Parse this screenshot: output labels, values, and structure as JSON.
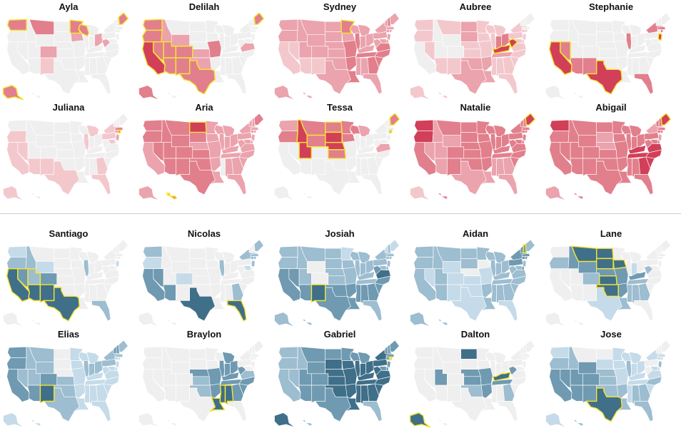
{
  "colors": {
    "none": "#efefef",
    "highlight_stroke": "#f7e534",
    "girls": [
      "#f3c8cd",
      "#eba3ad",
      "#e27f8c",
      "#d23f58"
    ],
    "boys": [
      "#c5dbe9",
      "#9dbdd0",
      "#6f9ab1",
      "#3f6f89"
    ]
  },
  "girls": [
    {
      "name": "Ayla",
      "base": 0,
      "states": {
        "WA": 3,
        "MT": 3,
        "MN": 3,
        "WI": 3,
        "ME": 3,
        "AK": 3,
        "IA": 2,
        "CO": 2,
        "NM": 1,
        "OH": 2,
        "WV": 2
      },
      "highlight": [
        "WA",
        "MN",
        "WI",
        "ME",
        "AK"
      ]
    },
    {
      "name": "Delilah",
      "base": 0,
      "states": {
        "WA": 3,
        "OR": 3,
        "CA": 4,
        "NV": 3,
        "ID": 2,
        "UT": 3,
        "AZ": 3,
        "WY": 2,
        "CO": 3,
        "NM": 3,
        "TX": 3,
        "OK": 2,
        "KS": 2,
        "ME": 3,
        "MO": 3,
        "AK": 3,
        "VA": 2
      },
      "highlight": [
        "WA",
        "OR",
        "CA",
        "NV",
        "UT",
        "CO",
        "NM",
        "TX",
        "AZ",
        "ME"
      ]
    },
    {
      "name": "Sydney",
      "base": 2,
      "states": {
        "CA": 1,
        "NV": 1,
        "AZ": 1,
        "NM": 1,
        "MN": 3,
        "MT": 2,
        "ND": 2,
        "WA": 2,
        "WY": 2,
        "IL": 3,
        "MO": 3,
        "AR": 3,
        "LA": 3,
        "TN": 3,
        "GA": 3,
        "SC": 3,
        "NC": 3,
        "VA": 3,
        "NH": 3
      },
      "highlight": [
        "MN"
      ]
    },
    {
      "name": "Aubree",
      "base": 1,
      "states": {
        "ID": 0,
        "WY": 0,
        "UT": 0,
        "CO": 0,
        "CA": 0,
        "NV": 1,
        "ND": 2,
        "SD": 2,
        "KY": 4,
        "WV": 4,
        "OK": 2,
        "TX": 2,
        "LA": 2,
        "AR": 2,
        "IN": 3,
        "OH": 3,
        "TN": 2,
        "NH": 0,
        "VT": 0,
        "ME": 0,
        "MA": 0
      },
      "highlight": [
        "KY",
        "WV"
      ]
    },
    {
      "name": "Stephanie",
      "base": 0,
      "states": {
        "CA": 4,
        "NV": 3,
        "AZ": 3,
        "TX": 4,
        "NM": 3,
        "NJ": 4,
        "NY": 3,
        "FL": 3,
        "IL": 3,
        "MA": 3,
        "RI": 3
      },
      "highlight": [
        "CA",
        "NV",
        "TX",
        "NJ"
      ]
    },
    {
      "name": "Juliana",
      "base": 0,
      "states": {
        "CA": 1,
        "NV": 1,
        "AZ": 1,
        "NM": 1,
        "TX": 1,
        "FL": 1,
        "GA": 1,
        "NY": 1,
        "NJ": 2,
        "MA": 3,
        "CT": 2,
        "RI": 3,
        "PA": 1,
        "IL": 1,
        "MI": 1,
        "MD": 1,
        "OR": 1,
        "AK": 1
      },
      "highlight": [
        "RI"
      ]
    },
    {
      "name": "Aria",
      "base": 2,
      "states": {
        "WA": 3,
        "OR": 3,
        "CA": 2,
        "NV": 3,
        "ID": 3,
        "MT": 3,
        "ND": 4,
        "SD": 3,
        "WY": 3,
        "UT": 3,
        "CO": 3,
        "AZ": 3,
        "NM": 3,
        "TX": 3,
        "OK": 3,
        "KS": 3,
        "AR": 2,
        "MS": 0,
        "ME": 3,
        "HI": 3
      },
      "highlight": [
        "ND",
        "HI"
      ]
    },
    {
      "name": "Tessa",
      "base": 0,
      "states": {
        "ID": 4,
        "MT": 3,
        "UT": 4,
        "WY": 3,
        "ND": 3,
        "SD": 4,
        "NE": 4,
        "KS": 3,
        "WI": 3,
        "MN": 3,
        "IA": 3,
        "ME": 3,
        "OR": 3,
        "WA": 2,
        "MI": 2,
        "VA": 2,
        "RI": 2
      },
      "highlight": [
        "ID",
        "UT",
        "WY",
        "ND",
        "SD",
        "NE",
        "KS",
        "ME",
        "RI"
      ]
    },
    {
      "name": "Natalie",
      "base": 3,
      "states": {
        "WA": 4,
        "OR": 4,
        "CA": 3,
        "NV": 2,
        "ID": 2,
        "UT": 2,
        "AZ": 2,
        "MT": 3,
        "WY": 2,
        "ME": 4,
        "MN": 3,
        "TX": 2,
        "LA": 2,
        "MS": 2,
        "AL": 2,
        "GA": 2,
        "FL": 2,
        "AK": 1
      },
      "highlight": [
        "ME"
      ]
    },
    {
      "name": "Abigail",
      "base": 3,
      "states": {
        "WA": 4,
        "NC": 4,
        "VA": 4,
        "TN": 4,
        "SC": 4,
        "GA": 4,
        "KY": 4,
        "ME": 4,
        "NH": 3,
        "SD": 2,
        "NE": 2,
        "NY": 2,
        "NJ": 2,
        "PA": 3,
        "AK": 2
      },
      "highlight": [
        "ME"
      ]
    }
  ],
  "boys": [
    {
      "name": "Santiago",
      "base": 0,
      "states": {
        "CA": 4,
        "NV": 3,
        "AZ": 4,
        "NM": 4,
        "TX": 4,
        "CO": 3,
        "UT": 2,
        "WA": 1,
        "OR": 2,
        "ID": 2,
        "WY": 1,
        "IL": 2,
        "FL": 2,
        "NJ": 1
      },
      "highlight": [
        "CA",
        "NV",
        "AZ",
        "NM",
        "TX",
        "UT"
      ]
    },
    {
      "name": "Nicolas",
      "base": 0,
      "states": {
        "CA": 3,
        "NV": 3,
        "AZ": 3,
        "TX": 4,
        "FL": 4,
        "NJ": 2,
        "NY": 2,
        "CT": 2,
        "RI": 2,
        "MA": 2,
        "ME": 2,
        "IL": 2,
        "GA": 2,
        "WA": 2,
        "OR": 1,
        "CO": 1,
        "MD": 1
      },
      "highlight": [
        "FL"
      ]
    },
    {
      "name": "Josiah",
      "base": 2,
      "states": {
        "WY": 0,
        "CO": 0,
        "MN": 1,
        "ME": 1,
        "VT": 1,
        "NM": 4,
        "AZ": 3,
        "TX": 3,
        "OK": 3,
        "AR": 3,
        "LA": 3,
        "MS": 3,
        "AL": 3,
        "GA": 3,
        "SC": 3,
        "NC": 3,
        "VA": 4,
        "WV": 3,
        "CA": 3,
        "NV": 3,
        "OR": 2
      },
      "highlight": [
        "NM"
      ]
    },
    {
      "name": "Aidan",
      "base": 2,
      "states": {
        "NV": 1,
        "WY": 1,
        "CO": 1,
        "NM": 1,
        "NE": 0,
        "IA": 0,
        "KS": 1,
        "MO": 1,
        "OK": 1,
        "TX": 1,
        "MT": 2,
        "ID": 2,
        "WA": 2,
        "OR": 2,
        "CA": 2,
        "UT": 2,
        "AZ": 2,
        "VT": 3,
        "NH": 3,
        "MA": 3,
        "RI": 3,
        "CT": 3,
        "NY": 3,
        "PA": 3,
        "DE": 3,
        "FL": 1,
        "GA": 2,
        "NC": 2,
        "SC": 2,
        "HI": 2
      },
      "highlight": [
        "NH"
      ]
    },
    {
      "name": "Lane",
      "base": 0,
      "states": {
        "MT": 4,
        "ND": 4,
        "SD": 4,
        "WY": 3,
        "NE": 3,
        "KS": 4,
        "OK": 4,
        "IA": 4,
        "MO": 3,
        "AR": 3,
        "TN": 2,
        "KY": 3,
        "WV": 2,
        "IN": 1,
        "TX": 1,
        "LA": 2,
        "MS": 2,
        "AL": 2,
        "GA": 2,
        "ID": 3,
        "CO": 2,
        "OR": 2
      },
      "highlight": [
        "MT",
        "ND",
        "SD",
        "KS",
        "OK",
        "IA"
      ]
    },
    {
      "name": "Elias",
      "base": 1,
      "states": {
        "NM": 4,
        "AZ": 3,
        "CO": 3,
        "UT": 2,
        "NV": 2,
        "CA": 3,
        "OR": 3,
        "WA": 3,
        "ID": 2,
        "MT": 2,
        "WY": 2,
        "TX": 2,
        "OK": 2,
        "KS": 2,
        "IL": 2,
        "IN": 2,
        "OH": 2,
        "PA": 2,
        "NY": 2,
        "MA": 2,
        "ME": 2,
        "VT": 3,
        "NH": 3,
        "FL": 1,
        "SD": 0,
        "ND": 0,
        "NE": 0
      },
      "highlight": [
        "NM"
      ]
    },
    {
      "name": "Braylon",
      "base": 0,
      "states": {
        "LA": 4,
        "MS": 4,
        "AL": 4,
        "AR": 3,
        "TN": 3,
        "GA": 3,
        "SC": 3,
        "NC": 3,
        "KY": 3,
        "OH": 3,
        "MI": 3,
        "IN": 3,
        "IL": 3,
        "WV": 3,
        "MO": 3,
        "OK": 2,
        "KS": 2,
        "NE": 3,
        "VA": 2
      },
      "highlight": [
        "LA",
        "MS",
        "AL"
      ]
    },
    {
      "name": "Gabriel",
      "base": 3,
      "states": {
        "WA": 2,
        "OR": 2,
        "CA": 2,
        "NV": 2,
        "ID": 2,
        "AZ": 3,
        "NM": 3,
        "TX": 3,
        "MT": 3,
        "ND": 3,
        "SD": 4,
        "NE": 4,
        "KS": 4,
        "OK": 4,
        "MN": 3,
        "IA": 4,
        "MO": 4,
        "IL": 4,
        "WI": 3,
        "MI": 3,
        "IN": 4,
        "OH": 4,
        "KY": 4,
        "TN": 4,
        "AR": 4,
        "LA": 4,
        "MS": 4,
        "AL": 4,
        "GA": 4,
        "SC": 4,
        "NC": 4,
        "VA": 4,
        "WV": 4,
        "PA": 4,
        "NY": 4,
        "VT": 3,
        "NH": 3,
        "ME": 3,
        "MA": 3,
        "CT": 3,
        "NJ": 3,
        "RI": 1,
        "FL": 2,
        "AK": 4,
        "HI": 2
      },
      "highlight": [
        "RI"
      ]
    },
    {
      "name": "Dalton",
      "base": 0,
      "states": {
        "ND": 4,
        "SD": 0,
        "NE": 3,
        "KS": 3,
        "UT": 3,
        "KY": 4,
        "TN": 3,
        "MO": 3,
        "AR": 3,
        "OK": 2,
        "WV": 3,
        "GA": 2,
        "AK": 4
      },
      "highlight": [
        "KY",
        "AK"
      ]
    },
    {
      "name": "Jose",
      "base": 3,
      "states": {
        "TX": 4,
        "NV": 3,
        "UT": 3,
        "AZ": 3,
        "NM": 3,
        "CA": 3,
        "WA": 1,
        "OR": 2,
        "ID": 2,
        "MT": 0,
        "ND": 0,
        "SD": 1,
        "NE": 2,
        "KS": 2,
        "OK": 2,
        "MN": 1,
        "WI": 1,
        "MI": 1,
        "IA": 1,
        "MO": 1,
        "IL": 2,
        "IN": 1,
        "OH": 1,
        "KY": 1,
        "TN": 1,
        "AR": 2,
        "LA": 2,
        "MS": 1,
        "AL": 2,
        "GA": 2,
        "SC": 1,
        "NC": 2,
        "VA": 1,
        "WV": 0,
        "PA": 0,
        "NY": 1,
        "VT": 0,
        "NH": 0,
        "ME": 0,
        "MA": 1,
        "CT": 1,
        "RI": 1,
        "NJ": 2,
        "DE": 1,
        "MD": 1,
        "FL": 2,
        "AK": 1,
        "HI": 2
      },
      "highlight": [
        "TX"
      ]
    }
  ]
}
